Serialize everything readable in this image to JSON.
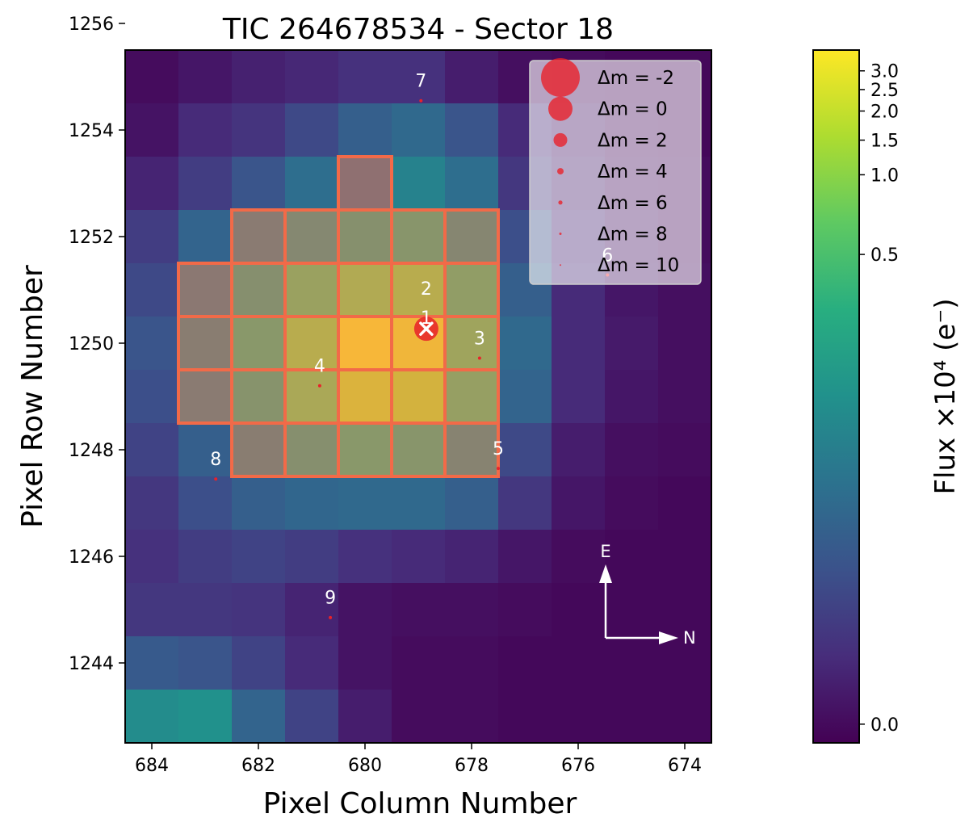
{
  "chart_data": {
    "type": "heatmap",
    "title": "TIC 264678534 - Sector 18",
    "xlabel": "Pixel Column Number",
    "ylabel": "Pixel Row Number",
    "x_range": [
      684.5,
      673.5
    ],
    "y_range": [
      1242.5,
      1255.5
    ],
    "x_ticks": [
      684,
      682,
      680,
      678,
      676,
      674
    ],
    "y_ticks": [
      1256,
      1254,
      1252,
      1250,
      1248,
      1246,
      1244
    ],
    "cols": [
      684,
      683,
      682,
      681,
      680,
      679,
      678,
      677,
      676,
      675,
      674
    ],
    "rows": [
      1255,
      1254,
      1253,
      1252,
      1251,
      1250,
      1249,
      1248,
      1247,
      1246,
      1245,
      1244,
      1243
    ],
    "flux_norm": [
      [
        0.03,
        0.06,
        0.09,
        0.11,
        0.14,
        0.14,
        0.08,
        0.04,
        0.03,
        0.02,
        0.02
      ],
      [
        0.05,
        0.12,
        0.15,
        0.22,
        0.3,
        0.34,
        0.26,
        0.12,
        0.06,
        0.03,
        0.02
      ],
      [
        0.1,
        0.18,
        0.26,
        0.36,
        0.32,
        0.44,
        0.36,
        0.16,
        0.08,
        0.04,
        0.03
      ],
      [
        0.18,
        0.32,
        0.4,
        0.5,
        0.56,
        0.6,
        0.48,
        0.24,
        0.1,
        0.05,
        0.03
      ],
      [
        0.22,
        0.38,
        0.55,
        0.7,
        0.78,
        0.8,
        0.66,
        0.3,
        0.12,
        0.06,
        0.04
      ],
      [
        0.26,
        0.42,
        0.62,
        0.8,
        0.98,
        0.96,
        0.72,
        0.34,
        0.12,
        0.07,
        0.04
      ],
      [
        0.24,
        0.4,
        0.58,
        0.76,
        0.9,
        0.88,
        0.68,
        0.32,
        0.12,
        0.06,
        0.04
      ],
      [
        0.2,
        0.3,
        0.42,
        0.55,
        0.62,
        0.6,
        0.46,
        0.22,
        0.08,
        0.04,
        0.03
      ],
      [
        0.16,
        0.24,
        0.3,
        0.33,
        0.34,
        0.34,
        0.3,
        0.16,
        0.06,
        0.03,
        0.02
      ],
      [
        0.14,
        0.18,
        0.2,
        0.18,
        0.14,
        0.12,
        0.1,
        0.06,
        0.03,
        0.02,
        0.02
      ],
      [
        0.16,
        0.16,
        0.15,
        0.1,
        0.05,
        0.04,
        0.04,
        0.03,
        0.02,
        0.02,
        0.02
      ],
      [
        0.28,
        0.26,
        0.2,
        0.12,
        0.05,
        0.03,
        0.03,
        0.02,
        0.02,
        0.02,
        0.02
      ],
      [
        0.48,
        0.5,
        0.32,
        0.2,
        0.08,
        0.03,
        0.03,
        0.02,
        0.02,
        0.02,
        0.02
      ]
    ],
    "aperture_pixels": [
      [
        680,
        1253
      ],
      [
        682,
        1252
      ],
      [
        681,
        1252
      ],
      [
        680,
        1252
      ],
      [
        679,
        1252
      ],
      [
        678,
        1252
      ],
      [
        683,
        1251
      ],
      [
        682,
        1251
      ],
      [
        681,
        1251
      ],
      [
        680,
        1251
      ],
      [
        679,
        1251
      ],
      [
        678,
        1251
      ],
      [
        683,
        1250
      ],
      [
        682,
        1250
      ],
      [
        681,
        1250
      ],
      [
        680,
        1250
      ],
      [
        679,
        1250
      ],
      [
        678,
        1250
      ],
      [
        683,
        1249
      ],
      [
        682,
        1249
      ],
      [
        681,
        1249
      ],
      [
        680,
        1249
      ],
      [
        679,
        1249
      ],
      [
        678,
        1249
      ],
      [
        682,
        1248
      ],
      [
        681,
        1248
      ],
      [
        680,
        1248
      ],
      [
        679,
        1248
      ],
      [
        678,
        1248
      ]
    ],
    "target": {
      "label": "1",
      "x": 678.85,
      "y": 1250.27
    },
    "stars": [
      {
        "label": "2",
        "x": 678.85,
        "y": 1250.45,
        "label_dx": 0,
        "label_dy": 0.4
      },
      {
        "label": "3",
        "x": 677.85,
        "y": 1249.72,
        "label_dx": 0.0,
        "label_dy": 0.2
      },
      {
        "label": "4",
        "x": 680.85,
        "y": 1249.2,
        "label_dx": 0.0,
        "label_dy": 0.2
      },
      {
        "label": "5",
        "x": 677.5,
        "y": 1247.65,
        "label_dx": 0.0,
        "label_dy": 0.2
      },
      {
        "label": "6",
        "x": 675.45,
        "y": 1251.28,
        "label_dx": 0.0,
        "label_dy": 0.2
      },
      {
        "label": "7",
        "x": 678.95,
        "y": 1254.55,
        "label_dx": 0.0,
        "label_dy": 0.2
      },
      {
        "label": "8",
        "x": 682.8,
        "y": 1247.45,
        "label_dx": 0.0,
        "label_dy": 0.2
      },
      {
        "label": "9",
        "x": 680.65,
        "y": 1244.85,
        "label_dx": 0.0,
        "label_dy": 0.2
      }
    ],
    "legend": {
      "position": "top-right",
      "prefix": "Δm = ",
      "entries": [
        "-2",
        "0",
        "2",
        "4",
        "6",
        "8",
        "10"
      ],
      "marker_color": "#e8222a"
    },
    "compass": {
      "up": "E",
      "right": "N"
    },
    "colorbar": {
      "label": "Flux ×10⁴ (e⁻)",
      "ticks": [
        {
          "label": "3.0",
          "frac": 0.97
        },
        {
          "label": "2.5",
          "frac": 0.943
        },
        {
          "label": "2.0",
          "frac": 0.912
        },
        {
          "label": "1.5",
          "frac": 0.87
        },
        {
          "label": "1.0",
          "frac": 0.82
        },
        {
          "label": "0.5",
          "frac": 0.705
        },
        {
          "label": "0.0",
          "frac": 0.027
        }
      ]
    },
    "colors": {
      "aperture_edge": "#f26a48",
      "aperture_fill": "#ff7f50",
      "marker": "#e8222a"
    }
  }
}
